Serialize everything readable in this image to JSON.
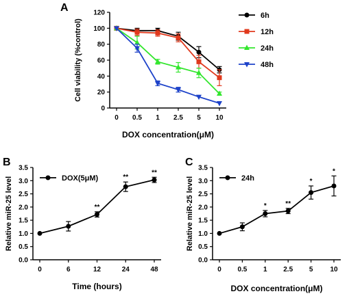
{
  "chart_data": [
    {
      "panel": "A",
      "type": "line",
      "categories": [
        "0",
        "0.5",
        "1",
        "2.5",
        "5",
        "10"
      ],
      "xlabel": "DOX concentration(μM)",
      "ylabel": "Cell viability (%control)",
      "ylim": [
        0,
        120
      ],
      "yticks": [
        "0",
        "20",
        "40",
        "60",
        "80",
        "100",
        "120"
      ],
      "legend_position": "top-right",
      "series": [
        {
          "name": "6h",
          "color": "#000000",
          "marker": "circle",
          "values": [
            100,
            97,
            97,
            90,
            70,
            48
          ],
          "errors": [
            0,
            3,
            3,
            5,
            7,
            4
          ]
        },
        {
          "name": "12h",
          "color": "#e0391d",
          "marker": "square",
          "values": [
            100,
            95,
            94,
            88,
            58,
            38
          ],
          "errors": [
            0,
            4,
            4,
            5,
            8,
            10
          ]
        },
        {
          "name": "24h",
          "color": "#33e62e",
          "marker": "triangle",
          "values": [
            100,
            82,
            58,
            51,
            44,
            18
          ],
          "errors": [
            0,
            8,
            3,
            6,
            6,
            2
          ]
        },
        {
          "name": "48h",
          "color": "#1d42c9",
          "marker": "triangle-down",
          "values": [
            100,
            75,
            31,
            23,
            14,
            6
          ],
          "errors": [
            0,
            5,
            3,
            3,
            0,
            0
          ]
        }
      ]
    },
    {
      "panel": "B",
      "type": "line",
      "categories": [
        "0",
        "6",
        "12",
        "24",
        "48"
      ],
      "xlabel": "Time (hours)",
      "ylabel": "Relative miR-25 level",
      "ylim": [
        0,
        3.5
      ],
      "yticks": [
        "0.0",
        "0.5",
        "1.0",
        "1.5",
        "2.0",
        "2.5",
        "3.0",
        "3.5"
      ],
      "legend_position": "top-left",
      "series": [
        {
          "name": "DOX(5μM)",
          "color": "#000000",
          "marker": "circle",
          "values": [
            1.0,
            1.27,
            1.72,
            2.77,
            3.03
          ],
          "errors": [
            0,
            0.18,
            0.1,
            0.18,
            0.1
          ]
        }
      ],
      "annotations": [
        "",
        "",
        "**",
        "**",
        "**"
      ]
    },
    {
      "panel": "C",
      "type": "line",
      "categories": [
        "0",
        "0.5",
        "1",
        "2.5",
        "5",
        "10"
      ],
      "xlabel": "DOX concentration(μM)",
      "ylabel": "Relative miR-25 level",
      "ylim": [
        0,
        3.5
      ],
      "yticks": [
        "0.0",
        "0.5",
        "1.0",
        "1.5",
        "2.0",
        "2.5",
        "3.0",
        "3.5"
      ],
      "legend_position": "top-left",
      "series": [
        {
          "name": "24h",
          "color": "#000000",
          "marker": "circle",
          "values": [
            1.0,
            1.25,
            1.75,
            1.85,
            2.55,
            2.8
          ],
          "errors": [
            0,
            0.15,
            0.12,
            0.1,
            0.25,
            0.38
          ]
        }
      ],
      "annotations": [
        "",
        "",
        "*",
        "**",
        "*",
        "*"
      ]
    }
  ]
}
